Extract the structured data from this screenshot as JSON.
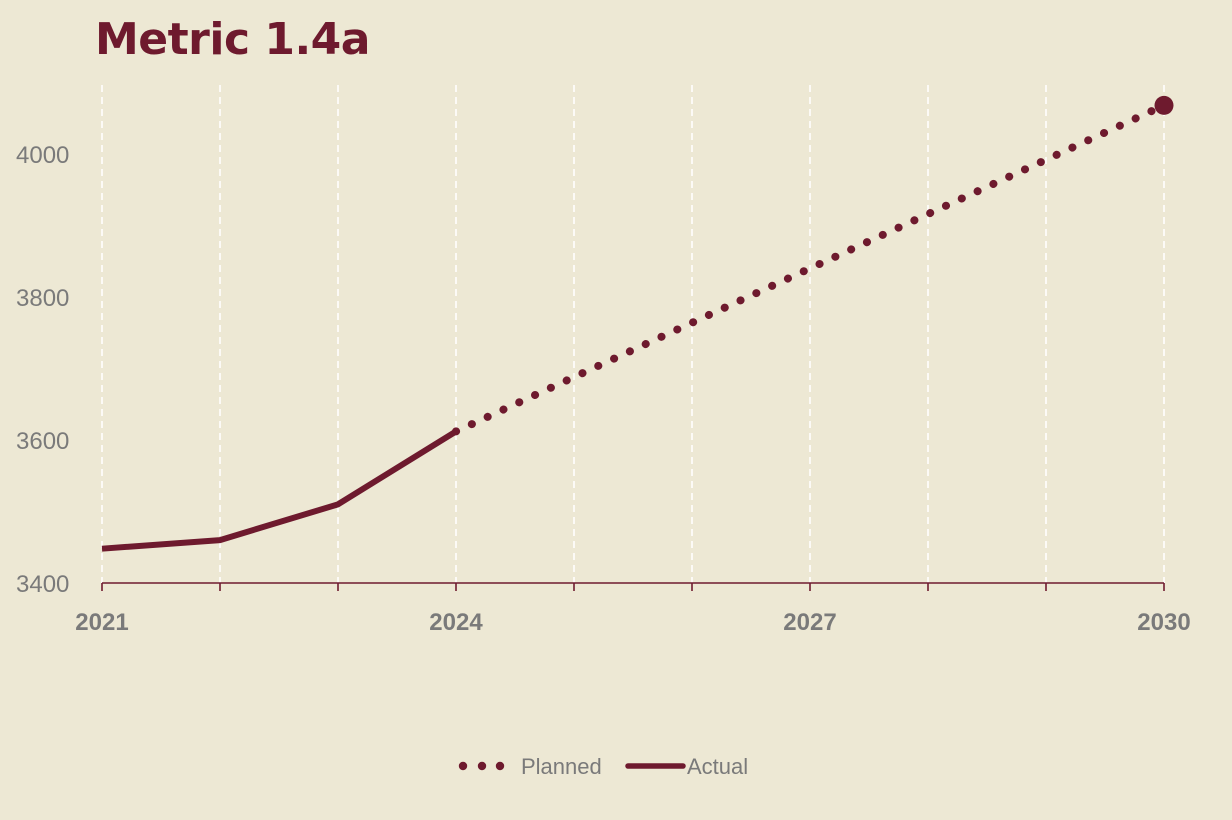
{
  "chart_data": {
    "type": "line",
    "title": "Metric 1.4a",
    "xlabel": "",
    "ylabel": "",
    "x_ticks": [
      "2021",
      "2024",
      "2027",
      "2030"
    ],
    "y_ticks": [
      "3400",
      "3600",
      "3800",
      "4000"
    ],
    "xlim": [
      2021,
      2030
    ],
    "ylim": [
      3400,
      4070
    ],
    "grid": "vertical dashed",
    "legend_position": "bottom",
    "series": [
      {
        "name": "Actual",
        "style": "solid",
        "color": "#6e1a2e",
        "x": [
          2021,
          2022,
          2023,
          2024
        ],
        "y": [
          3448,
          3460,
          3510,
          3612
        ]
      },
      {
        "name": "Planned",
        "style": "dotted",
        "color": "#6e1a2e",
        "x": [
          2024,
          2030
        ],
        "y": [
          3612,
          4068
        ],
        "end_marker": true
      }
    ]
  }
}
